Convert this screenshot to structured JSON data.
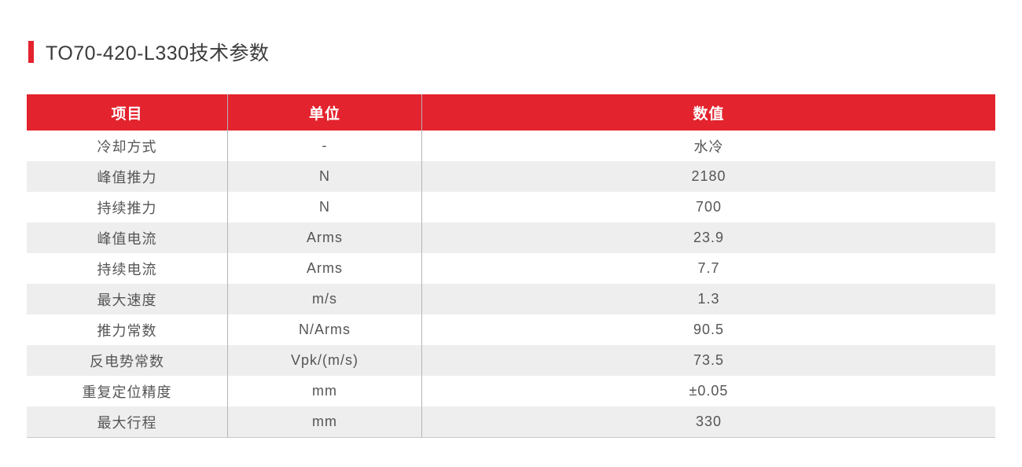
{
  "page": {
    "background": "#ffffff"
  },
  "title": {
    "text": "TO70-420-L330技术参数",
    "accent_color": "#E3232E",
    "text_color": "#3b3b3b"
  },
  "table": {
    "header": [
      "项目",
      "单位",
      "数值"
    ],
    "rows": [
      [
        "冷却方式",
        "-",
        "水冷"
      ],
      [
        "峰值推力",
        "N",
        "2180"
      ],
      [
        "持续推力",
        "N",
        "700"
      ],
      [
        "峰值电流",
        "Arms",
        "23.9"
      ],
      [
        "持续电流",
        "Arms",
        "7.7"
      ],
      [
        "最大速度",
        "m/s",
        "1.3"
      ],
      [
        "推力常数",
        "N/Arms",
        "90.5"
      ],
      [
        "反电势常数",
        "Vpk/(m/s)",
        "73.5"
      ],
      [
        "重复定位精度",
        "mm",
        "±0.05"
      ],
      [
        "最大行程",
        "mm",
        "330"
      ]
    ],
    "colors": {
      "header_bg": "#E3232E",
      "header_text": "#ffffff",
      "row_bg": "#ffffff",
      "row_alt_bg": "#eeeeee",
      "cell_text": "#555555",
      "divider": "#b5b5b5",
      "bottom_border": "#c9c9c9"
    }
  }
}
